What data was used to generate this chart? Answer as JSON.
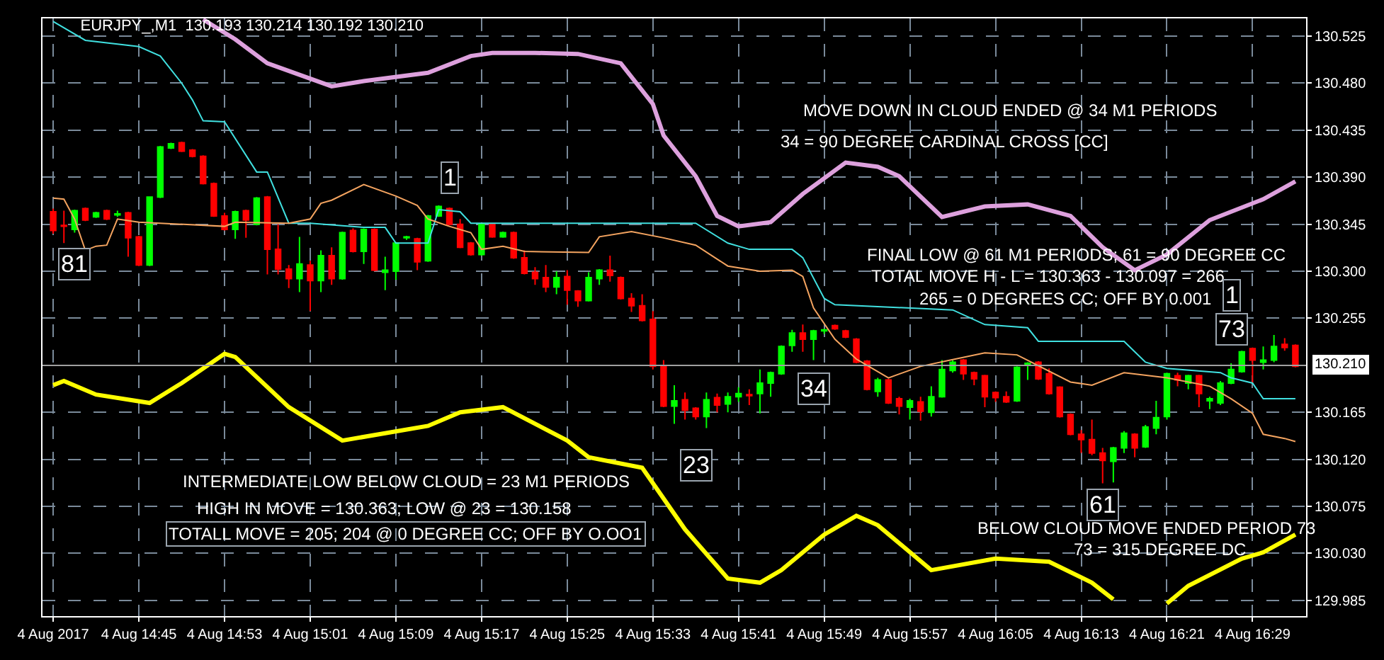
{
  "chart_data": {
    "type": "candlestick",
    "title": "EURJPY_,M1  130.193 130.214 130.192 130.210",
    "x": [
      "2017-08-04T14:37",
      "2017-08-04T14:38",
      "2017-08-04T14:39",
      "2017-08-04T14:40",
      "2017-08-04T14:41",
      "2017-08-04T14:42",
      "2017-08-04T14:43",
      "2017-08-04T14:44",
      "2017-08-04T14:45",
      "2017-08-04T14:46",
      "2017-08-04T14:47",
      "2017-08-04T14:48",
      "2017-08-04T14:49",
      "2017-08-04T14:50",
      "2017-08-04T14:51",
      "2017-08-04T14:52",
      "2017-08-04T14:53",
      "2017-08-04T14:54",
      "2017-08-04T14:55",
      "2017-08-04T14:56",
      "2017-08-04T14:57",
      "2017-08-04T14:58",
      "2017-08-04T14:59",
      "2017-08-04T15:00",
      "2017-08-04T15:01",
      "2017-08-04T15:02",
      "2017-08-04T15:03",
      "2017-08-04T15:04",
      "2017-08-04T15:05",
      "2017-08-04T15:06",
      "2017-08-04T15:07",
      "2017-08-04T15:08",
      "2017-08-04T15:09",
      "2017-08-04T15:10",
      "2017-08-04T15:11",
      "2017-08-04T15:12",
      "2017-08-04T15:13",
      "2017-08-04T15:14",
      "2017-08-04T15:15",
      "2017-08-04T15:16",
      "2017-08-04T15:17",
      "2017-08-04T15:18",
      "2017-08-04T15:19",
      "2017-08-04T15:20",
      "2017-08-04T15:21",
      "2017-08-04T15:22",
      "2017-08-04T15:23",
      "2017-08-04T15:24",
      "2017-08-04T15:25",
      "2017-08-04T15:26",
      "2017-08-04T15:27",
      "2017-08-04T15:28",
      "2017-08-04T15:29",
      "2017-08-04T15:30",
      "2017-08-04T15:31",
      "2017-08-04T15:32",
      "2017-08-04T15:33",
      "2017-08-04T15:34",
      "2017-08-04T15:35",
      "2017-08-04T15:36",
      "2017-08-04T15:37",
      "2017-08-04T15:38",
      "2017-08-04T15:39",
      "2017-08-04T15:40",
      "2017-08-04T15:41",
      "2017-08-04T15:42",
      "2017-08-04T15:43",
      "2017-08-04T15:44",
      "2017-08-04T15:45",
      "2017-08-04T15:46",
      "2017-08-04T15:47",
      "2017-08-04T15:48",
      "2017-08-04T15:49",
      "2017-08-04T15:50",
      "2017-08-04T15:51",
      "2017-08-04T15:52",
      "2017-08-04T15:53",
      "2017-08-04T15:54",
      "2017-08-04T15:55",
      "2017-08-04T15:56",
      "2017-08-04T15:57",
      "2017-08-04T15:58",
      "2017-08-04T15:59",
      "2017-08-04T16:00",
      "2017-08-04T16:01",
      "2017-08-04T16:02",
      "2017-08-04T16:03",
      "2017-08-04T16:04",
      "2017-08-04T16:05",
      "2017-08-04T16:06",
      "2017-08-04T16:07",
      "2017-08-04T16:08",
      "2017-08-04T16:09",
      "2017-08-04T16:10",
      "2017-08-04T16:11",
      "2017-08-04T16:12",
      "2017-08-04T16:13",
      "2017-08-04T16:14",
      "2017-08-04T16:15",
      "2017-08-04T16:16",
      "2017-08-04T16:17",
      "2017-08-04T16:18",
      "2017-08-04T16:19",
      "2017-08-04T16:20",
      "2017-08-04T16:21",
      "2017-08-04T16:22",
      "2017-08-04T16:23",
      "2017-08-04T16:24",
      "2017-08-04T16:25",
      "2017-08-04T16:26",
      "2017-08-04T16:27",
      "2017-08-04T16:28",
      "2017-08-04T16:29",
      "2017-08-04T16:30",
      "2017-08-04T16:31",
      "2017-08-04T16:32",
      "2017-08-04T16:33"
    ],
    "ohlc": [
      [
        130.357,
        130.36,
        130.336,
        130.339
      ],
      [
        130.344,
        130.358,
        130.327,
        130.343
      ],
      [
        130.34,
        130.359,
        130.337,
        130.358
      ],
      [
        130.36,
        130.361,
        130.348,
        130.349
      ],
      [
        130.352,
        130.357,
        130.351,
        130.356
      ],
      [
        130.358,
        130.359,
        130.349,
        130.35
      ],
      [
        130.354,
        130.358,
        130.352,
        130.355
      ],
      [
        130.356,
        130.357,
        130.314,
        130.332
      ],
      [
        130.333,
        130.334,
        130.305,
        130.306
      ],
      [
        130.306,
        130.371,
        130.305,
        130.371
      ],
      [
        130.371,
        130.42,
        130.37,
        130.419
      ],
      [
        130.418,
        130.423,
        130.417,
        130.422
      ],
      [
        130.423,
        130.424,
        130.414,
        130.415
      ],
      [
        130.416,
        130.417,
        130.409,
        130.41
      ],
      [
        130.41,
        130.411,
        130.383,
        130.384
      ],
      [
        130.384,
        130.385,
        130.352,
        130.353
      ],
      [
        130.353,
        130.356,
        130.339,
        130.34
      ],
      [
        130.34,
        130.358,
        130.331,
        130.357
      ],
      [
        130.358,
        130.359,
        130.332,
        130.349
      ],
      [
        130.345,
        130.371,
        130.344,
        130.37
      ],
      [
        130.371,
        130.372,
        130.297,
        130.321
      ],
      [
        130.321,
        130.345,
        130.297,
        130.302
      ],
      [
        130.302,
        130.306,
        130.284,
        130.293
      ],
      [
        130.293,
        130.333,
        130.28,
        130.307
      ],
      [
        130.306,
        130.31,
        130.262,
        130.291
      ],
      [
        130.291,
        130.32,
        130.28,
        130.315
      ],
      [
        130.315,
        130.323,
        130.287,
        130.293
      ],
      [
        130.293,
        130.338,
        130.292,
        130.337
      ],
      [
        130.339,
        130.341,
        130.318,
        130.319
      ],
      [
        130.319,
        130.341,
        130.307,
        130.34
      ],
      [
        130.34,
        130.341,
        130.3,
        130.301
      ],
      [
        130.299,
        130.314,
        130.282,
        130.301
      ],
      [
        130.3,
        130.328,
        130.292,
        130.327
      ],
      [
        130.332,
        130.334,
        130.33,
        130.333
      ],
      [
        130.331,
        130.332,
        130.301,
        130.309
      ],
      [
        130.31,
        130.354,
        130.309,
        130.353
      ],
      [
        130.353,
        130.363,
        130.352,
        130.362
      ],
      [
        130.36,
        130.361,
        130.344,
        130.345
      ],
      [
        130.345,
        130.35,
        130.322,
        130.323
      ],
      [
        130.327,
        130.328,
        130.315,
        130.316
      ],
      [
        130.316,
        130.346,
        130.315,
        130.345
      ],
      [
        130.345,
        130.346,
        130.332,
        130.333
      ],
      [
        130.333,
        130.338,
        130.332,
        130.337
      ],
      [
        130.337,
        130.338,
        130.312,
        130.313
      ],
      [
        130.313,
        130.32,
        130.297,
        130.298
      ],
      [
        130.299,
        130.304,
        130.287,
        130.293
      ],
      [
        130.294,
        130.306,
        130.28,
        130.285
      ],
      [
        130.285,
        130.3,
        130.278,
        130.294
      ],
      [
        130.295,
        130.301,
        130.268,
        130.282
      ],
      [
        130.281,
        130.282,
        130.266,
        130.272
      ],
      [
        130.272,
        130.299,
        130.271,
        130.294
      ],
      [
        130.293,
        130.302,
        130.287,
        130.301
      ],
      [
        130.301,
        130.315,
        130.29,
        130.296
      ],
      [
        130.294,
        130.295,
        130.273,
        130.274
      ],
      [
        130.274,
        130.279,
        130.261,
        130.267
      ],
      [
        130.267,
        130.278,
        130.252,
        130.253
      ],
      [
        130.254,
        130.262,
        130.206,
        130.209
      ],
      [
        130.209,
        130.215,
        130.17,
        130.171
      ],
      [
        130.171,
        130.191,
        130.154,
        130.176
      ],
      [
        130.177,
        130.184,
        130.158,
        130.167
      ],
      [
        130.169,
        130.17,
        130.158,
        130.161
      ],
      [
        130.161,
        130.184,
        130.15,
        130.177
      ],
      [
        130.179,
        130.183,
        130.165,
        130.172
      ],
      [
        130.173,
        130.184,
        130.165,
        130.18
      ],
      [
        130.18,
        130.189,
        130.175,
        130.183
      ],
      [
        130.182,
        130.187,
        130.172,
        130.181
      ],
      [
        130.183,
        130.206,
        130.164,
        130.193
      ],
      [
        130.193,
        130.204,
        130.18,
        130.203
      ],
      [
        130.202,
        130.229,
        130.201,
        130.228
      ],
      [
        130.229,
        130.244,
        130.223,
        130.241
      ],
      [
        130.241,
        130.249,
        130.223,
        130.235
      ],
      [
        130.235,
        130.244,
        130.215,
        130.243
      ],
      [
        130.243,
        130.245,
        130.24,
        130.244
      ],
      [
        130.248,
        130.249,
        130.244,
        130.245
      ],
      [
        130.243,
        130.244,
        130.236,
        130.237
      ],
      [
        130.235,
        130.236,
        130.212,
        130.213
      ],
      [
        130.214,
        130.215,
        130.186,
        130.187
      ],
      [
        130.185,
        130.198,
        130.18,
        130.196
      ],
      [
        130.196,
        130.197,
        130.173,
        130.174
      ],
      [
        130.178,
        130.18,
        130.163,
        130.171
      ],
      [
        130.17,
        130.178,
        130.158,
        130.176
      ],
      [
        130.175,
        130.18,
        130.157,
        130.166
      ],
      [
        130.165,
        130.19,
        130.161,
        130.18
      ],
      [
        130.18,
        130.215,
        130.179,
        130.206
      ],
      [
        130.205,
        130.215,
        130.203,
        130.213
      ],
      [
        130.215,
        130.216,
        130.196,
        130.202
      ],
      [
        130.203,
        130.204,
        130.191,
        130.197
      ],
      [
        130.2,
        130.201,
        130.17,
        130.18
      ],
      [
        130.184,
        130.185,
        130.175,
        130.179
      ],
      [
        130.18,
        130.185,
        130.174,
        130.175
      ],
      [
        130.176,
        130.209,
        130.175,
        130.208
      ],
      [
        130.21,
        130.213,
        130.196,
        130.212
      ],
      [
        130.213,
        130.214,
        130.196,
        130.197
      ],
      [
        130.202,
        130.207,
        130.182,
        130.183
      ],
      [
        130.189,
        130.19,
        130.16,
        130.161
      ],
      [
        130.163,
        130.164,
        130.143,
        130.144
      ],
      [
        130.144,
        130.148,
        130.126,
        130.139
      ],
      [
        130.139,
        130.158,
        130.124,
        130.126
      ],
      [
        130.126,
        130.131,
        130.097,
        130.119
      ],
      [
        130.118,
        130.132,
        130.098,
        130.131
      ],
      [
        130.131,
        130.147,
        130.126,
        130.145
      ],
      [
        130.144,
        130.145,
        130.122,
        130.131
      ],
      [
        130.132,
        130.153,
        130.131,
        130.151
      ],
      [
        130.15,
        130.176,
        130.144,
        130.16
      ],
      [
        130.161,
        130.203,
        130.158,
        130.202
      ],
      [
        130.2,
        130.203,
        130.19,
        130.196
      ],
      [
        130.193,
        130.201,
        130.187,
        130.2
      ],
      [
        130.2,
        130.201,
        130.17,
        130.183
      ],
      [
        130.176,
        130.18,
        130.168,
        130.178
      ],
      [
        130.174,
        130.195,
        130.172,
        130.193
      ],
      [
        130.193,
        130.212,
        130.192,
        130.206
      ],
      [
        130.204,
        130.224,
        130.203,
        130.223
      ],
      [
        130.226,
        130.227,
        130.193,
        130.215
      ],
      [
        130.213,
        130.228,
        130.206,
        130.215
      ],
      [
        130.215,
        130.239,
        130.213,
        130.228
      ],
      [
        130.23,
        130.236,
        130.224,
        130.227
      ],
      [
        130.229,
        130.23,
        130.208,
        130.209
      ]
    ],
    "series": [
      {
        "type": "line",
        "color": "#dda0dd",
        "x": [
          "2017-08-04T14:51",
          "2017-08-04T14:54",
          "2017-08-04T14:57",
          "2017-08-04T15:03",
          "2017-08-04T15:06",
          "2017-08-04T15:12",
          "2017-08-04T15:16",
          "2017-08-04T15:18",
          "2017-08-04T15:22",
          "2017-08-04T15:26",
          "2017-08-04T15:30",
          "2017-08-04T15:33",
          "2017-08-04T15:34",
          "2017-08-04T15:37",
          "2017-08-04T15:39",
          "2017-08-04T15:41",
          "2017-08-04T15:44",
          "2017-08-04T15:47",
          "2017-08-04T15:51",
          "2017-08-04T15:54",
          "2017-08-04T15:56",
          "2017-08-04T16:00",
          "2017-08-04T16:04",
          "2017-08-04T16:08",
          "2017-08-04T16:12",
          "2017-08-04T16:15",
          "2017-08-04T16:18",
          "2017-08-04T16:21",
          "2017-08-04T16:25",
          "2017-08-04T16:30",
          "2017-08-04T16:33"
        ],
        "values": [
          130.541,
          130.522,
          130.499,
          130.477,
          130.482,
          130.49,
          130.506,
          130.509,
          130.509,
          130.508,
          130.499,
          130.46,
          130.43,
          130.391,
          130.353,
          130.343,
          130.347,
          130.374,
          130.404,
          130.4,
          130.391,
          130.352,
          130.362,
          130.364,
          130.353,
          130.323,
          130.301,
          130.316,
          130.349,
          130.369,
          130.386
        ]
      },
      {
        "type": "line",
        "color": "#ffff00",
        "x": [
          "2017-08-04T14:37",
          "2017-08-04T14:38",
          "2017-08-04T14:41",
          "2017-08-04T14:46",
          "2017-08-04T14:49",
          "2017-08-04T14:53",
          "2017-08-04T14:54",
          "2017-08-04T14:59",
          "2017-08-04T15:04",
          "2017-08-04T15:08",
          "2017-08-04T15:12",
          "2017-08-04T15:15",
          "2017-08-04T15:19",
          "2017-08-04T15:25",
          "2017-08-04T15:27",
          "2017-08-04T15:32",
          "2017-08-04T15:36",
          "2017-08-04T15:40",
          "2017-08-04T15:43",
          "2017-08-04T15:45",
          "2017-08-04T15:49",
          "2017-08-04T15:52",
          "2017-08-04T15:54",
          "2017-08-04T15:59",
          "2017-08-04T16:05",
          "2017-08-04T16:10",
          "2017-08-04T16:14",
          "2017-08-04T16:16",
          "2017-08-04T16:17",
          "2017-08-04T16:21",
          "2017-08-04T16:23",
          "2017-08-04T16:28",
          "2017-08-04T16:30",
          "2017-08-04T16:33"
        ],
        "values": [
          130.191,
          130.195,
          130.182,
          130.174,
          130.193,
          130.221,
          130.218,
          130.17,
          130.138,
          130.145,
          130.152,
          130.165,
          130.17,
          130.138,
          130.122,
          130.112,
          130.053,
          130.006,
          130.002,
          130.014,
          130.048,
          130.066,
          130.057,
          130.014,
          130.025,
          130.022,
          130.002,
          129.986,
          null,
          129.982,
          129.999,
          130.025,
          130.031,
          130.048
        ]
      },
      {
        "type": "line",
        "color": "#40e0e0",
        "x": [
          "2017-08-04T14:37",
          "2017-08-04T14:40",
          "2017-08-04T14:45",
          "2017-08-04T14:47",
          "2017-08-04T14:49",
          "2017-08-04T14:50",
          "2017-08-04T14:51",
          "2017-08-04T14:53",
          "2017-08-04T14:56",
          "2017-08-04T14:57",
          "2017-08-04T14:59",
          "2017-08-04T15:01",
          "2017-08-04T15:06",
          "2017-08-04T15:08",
          "2017-08-04T15:09",
          "2017-08-04T15:12",
          "2017-08-04T15:13",
          "2017-08-04T15:15",
          "2017-08-04T15:16",
          "2017-08-04T15:37",
          "2017-08-04T15:40",
          "2017-08-04T15:42",
          "2017-08-04T15:46",
          "2017-08-04T15:47",
          "2017-08-04T15:49",
          "2017-08-04T15:50",
          "2017-08-04T16:01",
          "2017-08-04T16:04",
          "2017-08-04T16:08",
          "2017-08-04T16:09",
          "2017-08-04T16:17",
          "2017-08-04T16:19",
          "2017-08-04T16:21",
          "2017-08-04T16:26",
          "2017-08-04T16:27",
          "2017-08-04T16:29",
          "2017-08-04T16:30",
          "2017-08-04T16:33"
        ],
        "values": [
          130.539,
          130.521,
          130.515,
          130.506,
          130.48,
          130.464,
          130.444,
          130.443,
          130.395,
          130.395,
          130.346,
          130.346,
          130.342,
          130.342,
          130.327,
          130.327,
          130.359,
          130.357,
          130.346,
          130.346,
          130.327,
          130.321,
          130.321,
          130.313,
          130.274,
          130.268,
          130.263,
          130.249,
          130.246,
          130.233,
          130.233,
          130.213,
          130.207,
          130.203,
          130.198,
          130.193,
          130.178,
          130.178
        ]
      },
      {
        "type": "line",
        "color": "#f4a460",
        "x": [
          "2017-08-04T14:37",
          "2017-08-04T14:38",
          "2017-08-04T14:39",
          "2017-08-04T14:40",
          "2017-08-04T14:41",
          "2017-08-04T14:42",
          "2017-08-04T14:43",
          "2017-08-04T14:45",
          "2017-08-04T14:53",
          "2017-08-04T14:54",
          "2017-08-04T14:59",
          "2017-08-04T15:01",
          "2017-08-04T15:02",
          "2017-08-04T15:03",
          "2017-08-04T15:06",
          "2017-08-04T15:09",
          "2017-08-04T15:11",
          "2017-08-04T15:12",
          "2017-08-04T15:14",
          "2017-08-04T15:16",
          "2017-08-04T15:17",
          "2017-08-04T15:19",
          "2017-08-04T15:21",
          "2017-08-04T15:27",
          "2017-08-04T15:28",
          "2017-08-04T15:31",
          "2017-08-04T15:34",
          "2017-08-04T15:37",
          "2017-08-04T15:40",
          "2017-08-04T15:43",
          "2017-08-04T15:46",
          "2017-08-04T15:47",
          "2017-08-04T15:48",
          "2017-08-04T15:50",
          "2017-08-04T15:52",
          "2017-08-04T15:55",
          "2017-08-04T15:58",
          "2017-08-04T16:04",
          "2017-08-04T16:07",
          "2017-08-04T16:12",
          "2017-08-04T16:14",
          "2017-08-04T16:17",
          "2017-08-04T16:21",
          "2017-08-04T16:25",
          "2017-08-04T16:27",
          "2017-08-04T16:29",
          "2017-08-04T16:30",
          "2017-08-04T16:32",
          "2017-08-04T16:33"
        ],
        "values": [
          130.37,
          130.369,
          130.35,
          130.32,
          130.324,
          130.325,
          130.35,
          130.347,
          130.343,
          130.347,
          130.346,
          130.35,
          130.365,
          130.368,
          130.383,
          130.372,
          130.363,
          130.35,
          130.343,
          130.337,
          130.321,
          130.324,
          130.319,
          130.318,
          130.333,
          130.338,
          130.332,
          130.325,
          130.305,
          130.3,
          130.301,
          130.295,
          130.265,
          130.235,
          130.216,
          130.198,
          130.209,
          130.222,
          130.22,
          130.194,
          130.191,
          130.203,
          130.198,
          130.19,
          130.178,
          130.164,
          130.144,
          130.14,
          130.137
        ]
      }
    ],
    "xlim": [
      "2017-08-04T14:36",
      "2017-08-04T16:34"
    ],
    "xticks": [
      {
        "value": "2017-08-04T14:37",
        "label": "4 Aug 2017"
      },
      {
        "value": "2017-08-04T14:45",
        "label": "4 Aug 14:45"
      },
      {
        "value": "2017-08-04T14:53",
        "label": "4 Aug 14:53"
      },
      {
        "value": "2017-08-04T15:01",
        "label": "4 Aug 15:01"
      },
      {
        "value": "2017-08-04T15:09",
        "label": "4 Aug 15:09"
      },
      {
        "value": "2017-08-04T15:17",
        "label": "4 Aug 15:17"
      },
      {
        "value": "2017-08-04T15:25",
        "label": "4 Aug 15:25"
      },
      {
        "value": "2017-08-04T15:33",
        "label": "4 Aug 15:33"
      },
      {
        "value": "2017-08-04T15:41",
        "label": "4 Aug 15:41"
      },
      {
        "value": "2017-08-04T15:49",
        "label": "4 Aug 15:49"
      },
      {
        "value": "2017-08-04T15:57",
        "label": "4 Aug 15:57"
      },
      {
        "value": "2017-08-04T16:05",
        "label": "4 Aug 16:05"
      },
      {
        "value": "2017-08-04T16:13",
        "label": "4 Aug 16:13"
      },
      {
        "value": "2017-08-04T16:21",
        "label": "4 Aug 16:21"
      },
      {
        "value": "2017-08-04T16:29",
        "label": "4 Aug 16:29"
      }
    ],
    "ylim": [
      129.97,
      130.542
    ],
    "yticks": [
      {
        "value": 129.985,
        "label": "129.985"
      },
      {
        "value": 130.03,
        "label": "130.030"
      },
      {
        "value": 130.075,
        "label": "130.075"
      },
      {
        "value": 130.12,
        "label": "130.120"
      },
      {
        "value": 130.165,
        "label": "130.165"
      },
      {
        "value": 130.255,
        "label": "130.255"
      },
      {
        "value": 130.3,
        "label": "130.300"
      },
      {
        "value": 130.345,
        "label": "130.345"
      },
      {
        "value": 130.39,
        "label": "130.390"
      },
      {
        "value": 130.435,
        "label": "130.435"
      },
      {
        "value": 130.48,
        "label": "130.480"
      },
      {
        "value": 130.525,
        "label": "130.525"
      }
    ],
    "ref_lines": [
      {
        "axis": "y",
        "value": 130.21,
        "label": "130.210",
        "color": "#a0a0a0"
      }
    ],
    "grid": true,
    "annotations": [
      "MOVE DOWN IN CLOUD ENDED @ 34 M1 PERIODS",
      "34 = 90 DEGREE CARDINAL CROSS [CC]",
      "FINAL LOW @ 61 M1 PERIODS; 61 = 90 DEGREE CC",
      "TOTAL MOVE H - L = 130.363 - 130.097 = 266",
      "265 = 0 DEGREES CC; OFF BY 0.001",
      "INTERMEDIATE LOW BELOW CLOUD = 23 M1 PERIODS",
      "HIGH IN MOVE = 130.363; LOW @ 23 = 130.158",
      "TOTALL MOVE = 205; 204 @ 0 DEGREE CC; OFF BY O.OO1",
      "BELOW CLOUD MOVE ENDED PERIOD 73",
      "73 = 315 DEGREE DC",
      {
        "text": "81",
        "x": "2017-08-04T14:39",
        "y": 130.307
      },
      {
        "text": "1",
        "x": "2017-08-04T15:14",
        "y": 130.389
      },
      {
        "text": "23",
        "x": "2017-08-04T15:37",
        "y": 130.114
      },
      {
        "text": "34",
        "x": "2017-08-04T15:48",
        "y": 130.188
      },
      {
        "text": "61",
        "x": "2017-08-04T16:15",
        "y": 130.076
      },
      {
        "text": "1",
        "x": "2017-08-04T16:27",
        "y": 130.277
      },
      {
        "text": "73",
        "x": "2017-08-04T16:27",
        "y": 130.245
      }
    ]
  }
}
